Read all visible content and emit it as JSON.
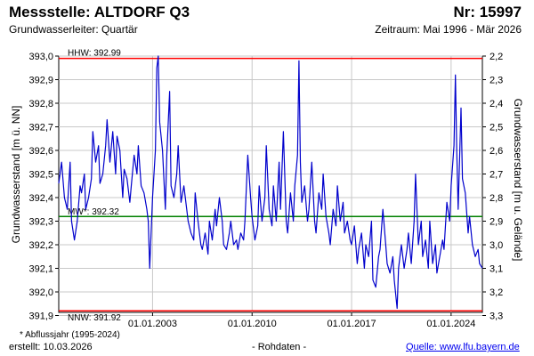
{
  "header": {
    "title": "Messstelle: ALTDORF Q3",
    "number": "Nr: 15997",
    "subtitle": "Grundwasserleiter: Quartär",
    "period": "Zeitraum: Mai 1996 - Mär 2026"
  },
  "footer": {
    "footnote": "* Abflussjahr (1995-2024)",
    "created": "erstellt:  10.03.2026",
    "raw": "- Rohdaten -",
    "source": "Quelle: www.lfu.bayern.de"
  },
  "chart_data": {
    "type": "line",
    "ylabel": "Grundwasserstand [m ü. NN]",
    "y2label": "Grundwasserstand [m u. Gelände]",
    "ylim": [
      391.87,
      393.02
    ],
    "y_ticks": [
      "393,0",
      "392,9",
      "392,8",
      "392,7",
      "392,6",
      "392,5",
      "392,4",
      "392,3",
      "392,2",
      "392,1",
      "392,0",
      "391,9"
    ],
    "y2_ticks": [
      "2,2",
      "2,3",
      "2,4",
      "2,5",
      "2,6",
      "2,7",
      "2,8",
      "2,9",
      "3,0",
      "3,1",
      "3,2",
      "3,3"
    ],
    "x_range": [
      1996.4,
      2026.2
    ],
    "x_ticks": [
      {
        "value": 2003.0,
        "label": "01.01.2003"
      },
      {
        "value": 2010.0,
        "label": "01.01.2010"
      },
      {
        "value": 2017.0,
        "label": "01.01.2017"
      },
      {
        "value": 2024.0,
        "label": "01.01.2024"
      }
    ],
    "reference_lines": [
      {
        "label": "HHW: 392.99",
        "value": 392.99,
        "color": "#ff0000"
      },
      {
        "label": "MW*: 392.32",
        "value": 392.32,
        "color": "#008000"
      },
      {
        "label": "NNW: 391.92",
        "value": 391.92,
        "color": "#ff0000"
      }
    ],
    "grid": true,
    "series": [
      {
        "color": "#0000cc",
        "points": [
          [
            1996.4,
            392.46
          ],
          [
            1996.6,
            392.55
          ],
          [
            1996.8,
            392.4
          ],
          [
            1997.0,
            392.35
          ],
          [
            1997.2,
            392.55
          ],
          [
            1997.3,
            392.3
          ],
          [
            1997.5,
            392.22
          ],
          [
            1997.7,
            392.3
          ],
          [
            1997.9,
            392.45
          ],
          [
            1998.0,
            392.42
          ],
          [
            1998.2,
            392.5
          ],
          [
            1998.3,
            392.35
          ],
          [
            1998.5,
            392.4
          ],
          [
            1998.7,
            392.48
          ],
          [
            1998.8,
            392.68
          ],
          [
            1999.0,
            392.55
          ],
          [
            1999.2,
            392.62
          ],
          [
            1999.3,
            392.46
          ],
          [
            1999.5,
            392.5
          ],
          [
            1999.7,
            392.62
          ],
          [
            1999.8,
            392.73
          ],
          [
            2000.0,
            392.55
          ],
          [
            2000.2,
            392.68
          ],
          [
            2000.4,
            392.5
          ],
          [
            2000.5,
            392.66
          ],
          [
            2000.7,
            392.6
          ],
          [
            2000.9,
            392.4
          ],
          [
            2001.0,
            392.52
          ],
          [
            2001.2,
            392.48
          ],
          [
            2001.4,
            392.38
          ],
          [
            2001.5,
            392.45
          ],
          [
            2001.7,
            392.58
          ],
          [
            2001.9,
            392.5
          ],
          [
            2002.0,
            392.62
          ],
          [
            2002.2,
            392.45
          ],
          [
            2002.4,
            392.42
          ],
          [
            2002.6,
            392.35
          ],
          [
            2002.7,
            392.3
          ],
          [
            2002.8,
            392.1
          ],
          [
            2003.0,
            392.4
          ],
          [
            2003.2,
            392.6
          ],
          [
            2003.3,
            392.95
          ],
          [
            2003.4,
            393.0
          ],
          [
            2003.5,
            392.72
          ],
          [
            2003.7,
            392.6
          ],
          [
            2003.9,
            392.35
          ],
          [
            2004.0,
            392.58
          ],
          [
            2004.2,
            392.85
          ],
          [
            2004.3,
            392.45
          ],
          [
            2004.5,
            392.4
          ],
          [
            2004.7,
            392.5
          ],
          [
            2004.8,
            392.62
          ],
          [
            2005.0,
            392.38
          ],
          [
            2005.2,
            392.45
          ],
          [
            2005.4,
            392.35
          ],
          [
            2005.5,
            392.3
          ],
          [
            2005.7,
            392.25
          ],
          [
            2005.9,
            392.22
          ],
          [
            2006.0,
            392.42
          ],
          [
            2006.2,
            392.3
          ],
          [
            2006.4,
            392.2
          ],
          [
            2006.5,
            392.18
          ],
          [
            2006.7,
            392.25
          ],
          [
            2006.9,
            392.16
          ],
          [
            2007.0,
            392.3
          ],
          [
            2007.2,
            392.22
          ],
          [
            2007.4,
            392.35
          ],
          [
            2007.5,
            392.28
          ],
          [
            2007.7,
            392.4
          ],
          [
            2007.9,
            392.3
          ],
          [
            2008.0,
            392.2
          ],
          [
            2008.2,
            392.18
          ],
          [
            2008.4,
            392.25
          ],
          [
            2008.5,
            392.3
          ],
          [
            2008.7,
            392.2
          ],
          [
            2008.9,
            392.22
          ],
          [
            2009.0,
            392.18
          ],
          [
            2009.2,
            392.25
          ],
          [
            2009.4,
            392.22
          ],
          [
            2009.5,
            392.3
          ],
          [
            2009.7,
            392.58
          ],
          [
            2009.9,
            392.4
          ],
          [
            2010.0,
            392.32
          ],
          [
            2010.2,
            392.22
          ],
          [
            2010.4,
            392.28
          ],
          [
            2010.5,
            392.45
          ],
          [
            2010.7,
            392.3
          ],
          [
            2010.9,
            392.4
          ],
          [
            2011.0,
            392.62
          ],
          [
            2011.2,
            392.35
          ],
          [
            2011.4,
            392.28
          ],
          [
            2011.5,
            392.45
          ],
          [
            2011.7,
            392.3
          ],
          [
            2011.9,
            392.55
          ],
          [
            2012.0,
            392.35
          ],
          [
            2012.2,
            392.68
          ],
          [
            2012.4,
            392.3
          ],
          [
            2012.5,
            392.25
          ],
          [
            2012.7,
            392.42
          ],
          [
            2012.9,
            392.3
          ],
          [
            2013.0,
            392.45
          ],
          [
            2013.2,
            392.58
          ],
          [
            2013.3,
            392.98
          ],
          [
            2013.4,
            392.55
          ],
          [
            2013.5,
            392.38
          ],
          [
            2013.7,
            392.45
          ],
          [
            2013.9,
            392.3
          ],
          [
            2014.0,
            392.35
          ],
          [
            2014.2,
            392.55
          ],
          [
            2014.4,
            392.3
          ],
          [
            2014.5,
            392.25
          ],
          [
            2014.7,
            392.42
          ],
          [
            2014.9,
            392.35
          ],
          [
            2015.0,
            392.5
          ],
          [
            2015.2,
            392.32
          ],
          [
            2015.4,
            392.25
          ],
          [
            2015.5,
            392.2
          ],
          [
            2015.7,
            392.35
          ],
          [
            2015.9,
            392.28
          ],
          [
            2016.0,
            392.45
          ],
          [
            2016.2,
            392.3
          ],
          [
            2016.4,
            392.38
          ],
          [
            2016.5,
            392.25
          ],
          [
            2016.7,
            392.3
          ],
          [
            2016.9,
            392.22
          ],
          [
            2017.0,
            392.2
          ],
          [
            2017.2,
            392.28
          ],
          [
            2017.4,
            392.12
          ],
          [
            2017.5,
            392.18
          ],
          [
            2017.7,
            392.25
          ],
          [
            2017.9,
            392.1
          ],
          [
            2018.0,
            392.2
          ],
          [
            2018.2,
            392.15
          ],
          [
            2018.4,
            392.3
          ],
          [
            2018.5,
            392.05
          ],
          [
            2018.7,
            392.02
          ],
          [
            2018.9,
            392.15
          ],
          [
            2019.0,
            392.18
          ],
          [
            2019.2,
            392.35
          ],
          [
            2019.4,
            392.2
          ],
          [
            2019.5,
            392.12
          ],
          [
            2019.7,
            392.08
          ],
          [
            2019.9,
            392.15
          ],
          [
            2020.0,
            392.05
          ],
          [
            2020.2,
            391.93
          ],
          [
            2020.3,
            392.1
          ],
          [
            2020.5,
            392.2
          ],
          [
            2020.7,
            392.1
          ],
          [
            2020.9,
            392.18
          ],
          [
            2021.0,
            392.25
          ],
          [
            2021.2,
            392.12
          ],
          [
            2021.4,
            392.3
          ],
          [
            2021.5,
            392.5
          ],
          [
            2021.7,
            392.2
          ],
          [
            2021.9,
            392.3
          ],
          [
            2022.0,
            392.15
          ],
          [
            2022.2,
            392.22
          ],
          [
            2022.4,
            392.1
          ],
          [
            2022.5,
            392.3
          ],
          [
            2022.7,
            392.12
          ],
          [
            2022.9,
            392.2
          ],
          [
            2023.0,
            392.08
          ],
          [
            2023.2,
            392.15
          ],
          [
            2023.4,
            392.22
          ],
          [
            2023.5,
            392.18
          ],
          [
            2023.7,
            392.38
          ],
          [
            2023.9,
            392.3
          ],
          [
            2024.0,
            392.45
          ],
          [
            2024.2,
            392.62
          ],
          [
            2024.3,
            392.92
          ],
          [
            2024.4,
            392.6
          ],
          [
            2024.5,
            392.35
          ],
          [
            2024.7,
            392.78
          ],
          [
            2024.8,
            392.48
          ],
          [
            2025.0,
            392.42
          ],
          [
            2025.2,
            392.25
          ],
          [
            2025.3,
            392.32
          ],
          [
            2025.5,
            392.2
          ],
          [
            2025.7,
            392.15
          ],
          [
            2025.9,
            392.18
          ],
          [
            2026.0,
            392.12
          ],
          [
            2026.2,
            392.1
          ]
        ]
      }
    ]
  }
}
